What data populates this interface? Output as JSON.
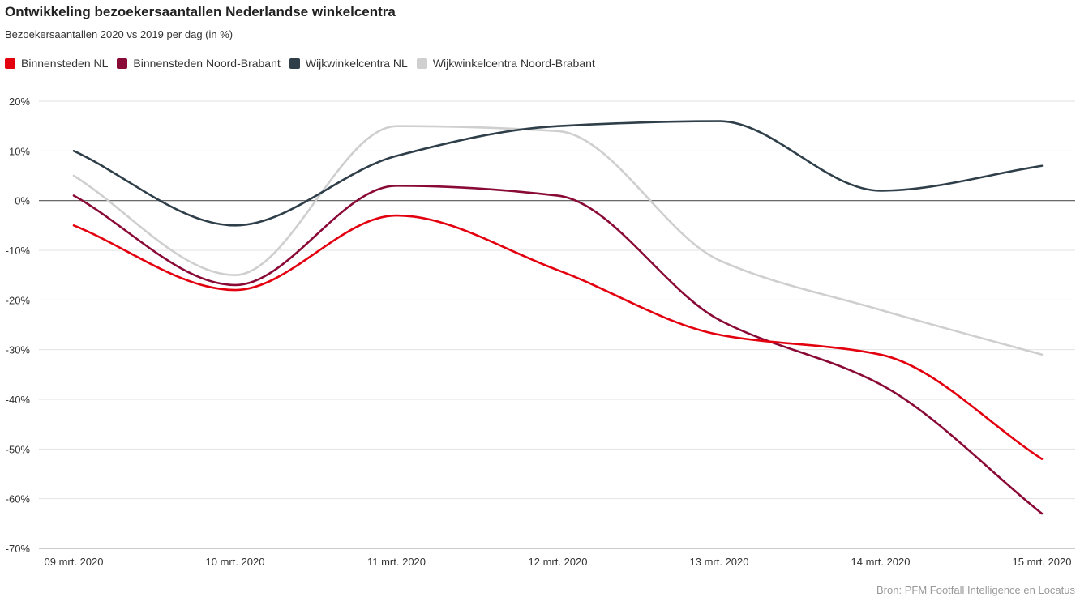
{
  "header": {
    "title": "Ontwikkeling bezoekersaantallen Nederlandse winkelcentra",
    "subtitle": "Bezoekersaantallen 2020 vs 2019 per dag (in %)"
  },
  "source": {
    "label": "Bron:",
    "link_text": "PFM Footfall Intelligence en Locatus"
  },
  "chart_data": {
    "type": "line",
    "title": "Ontwikkeling bezoekersaantallen Nederlandse winkelcentra",
    "subtitle": "Bezoekersaantallen 2020 vs 2019 per dag (in %)",
    "xlabel": "",
    "ylabel": "",
    "categories": [
      "09 mrt. 2020",
      "10 mrt. 2020",
      "11 mrt. 2020",
      "12 mrt. 2020",
      "13 mrt. 2020",
      "14 mrt. 2020",
      "15 mrt. 2020"
    ],
    "yticks": [
      20,
      10,
      0,
      -10,
      -20,
      -30,
      -40,
      -50,
      -60,
      -70
    ],
    "ytick_labels": [
      "20%",
      "10%",
      "0%",
      "-10%",
      "-20%",
      "-30%",
      "-40%",
      "-50%",
      "-60%",
      "-70%"
    ],
    "ylim": [
      -70,
      20
    ],
    "grid": true,
    "legend_position": "top-left",
    "series": [
      {
        "name": "Binnensteden NL",
        "color": "#e3000f",
        "values": [
          -5,
          -18,
          -3,
          -14,
          -27,
          -31,
          -52
        ]
      },
      {
        "name": "Binnensteden Noord-Brabant",
        "color": "#8a0a37",
        "values": [
          1,
          -17,
          3,
          1,
          -24,
          -37,
          -63
        ]
      },
      {
        "name": "Wijkwinkelcentra NL",
        "color": "#2f3f4a",
        "values": [
          10,
          -5,
          9,
          15,
          16,
          2,
          7
        ]
      },
      {
        "name": "Wijkwinkelcentra Noord-Brabant",
        "color": "#cfcfcf",
        "values": [
          5,
          -15,
          15,
          14,
          -12,
          -22,
          -31
        ]
      }
    ]
  }
}
